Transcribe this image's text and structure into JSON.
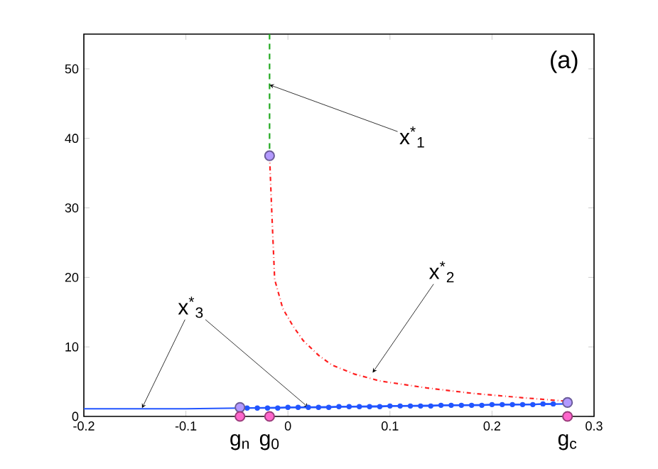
{
  "chart_data": {
    "type": "line",
    "xlim": [
      -0.2,
      0.3
    ],
    "ylim": [
      0,
      55
    ],
    "xticks": [
      -0.2,
      -0.1,
      0,
      0.1,
      0.2,
      0.3
    ],
    "yticks": [
      0,
      10,
      20,
      30,
      40,
      50
    ],
    "grid": false,
    "series": [
      {
        "color": "#22aa22",
        "line_style": "dashed",
        "marker": "none",
        "x": [
          -0.018,
          -0.018
        ],
        "values": [
          38.5,
          55
        ]
      },
      {
        "color": "#ff2020",
        "line_style": "dashdot",
        "marker": "none",
        "x": [
          -0.018,
          -0.016,
          -0.013,
          -0.005,
          0.005,
          0.015,
          0.03,
          0.043,
          0.065,
          0.09,
          0.136,
          0.182,
          0.229,
          0.272
        ],
        "values": [
          37.5,
          30,
          19.7,
          15.5,
          13,
          10.9,
          8.8,
          7.4,
          6.1,
          5.1,
          4.1,
          3.3,
          2.7,
          2.2
        ]
      },
      {
        "color": "#2255ff",
        "line_style": "solid",
        "marker": "none",
        "x": [
          -0.2,
          -0.1,
          -0.047,
          0.05,
          0.15,
          0.274
        ],
        "values": [
          1.1,
          1.1,
          1.2,
          1.4,
          1.6,
          1.8
        ]
      },
      {
        "color": "#2255ff",
        "line_style": "solid",
        "marker": "circle",
        "x": [
          -0.04,
          -0.03,
          -0.02,
          -0.01,
          0,
          0.01,
          0.02,
          0.03,
          0.04,
          0.05,
          0.06,
          0.07,
          0.08,
          0.09,
          0.1,
          0.11,
          0.12,
          0.13,
          0.14,
          0.15,
          0.16,
          0.17,
          0.18,
          0.19,
          0.2,
          0.21,
          0.22,
          0.23,
          0.24,
          0.25,
          0.26
        ],
        "values": [
          1.2,
          1.2,
          1.2,
          1.2,
          1.3,
          1.3,
          1.3,
          1.3,
          1.3,
          1.4,
          1.4,
          1.4,
          1.4,
          1.4,
          1.5,
          1.5,
          1.5,
          1.5,
          1.5,
          1.6,
          1.6,
          1.6,
          1.6,
          1.6,
          1.7,
          1.7,
          1.7,
          1.7,
          1.7,
          1.8,
          1.8
        ]
      },
      {
        "type": "scatter",
        "color": "#b399ff",
        "marker": "circle",
        "x": [
          -0.047,
          -0.018,
          0.274
        ],
        "values": [
          1.3,
          37.5,
          2.0
        ]
      },
      {
        "type": "scatter",
        "color": "#ff66cc",
        "marker": "circle",
        "x": [
          -0.047,
          -0.018,
          0.274
        ],
        "values": [
          0,
          0,
          0
        ]
      }
    ],
    "annotations": [
      "(a)",
      {
        "text": "x$^{*}$$_{1}$",
        "x": -0.018,
        "y": 47.7
      },
      {
        "text": "x$^{*}$$_{2}$",
        "x": 0.083,
        "y": 6.3
      },
      {
        "text": "x$^{*}$$_{3}$",
        "x": -0.143,
        "y": 1.2
      },
      {
        "text": "g$_{n}$",
        "x": -0.047,
        "y": 0
      },
      {
        "text": "g$_{0}$",
        "x": -0.018,
        "y": 0
      },
      {
        "text": "g$_{c}$",
        "x": 0.274,
        "y": 0
      }
    ]
  }
}
